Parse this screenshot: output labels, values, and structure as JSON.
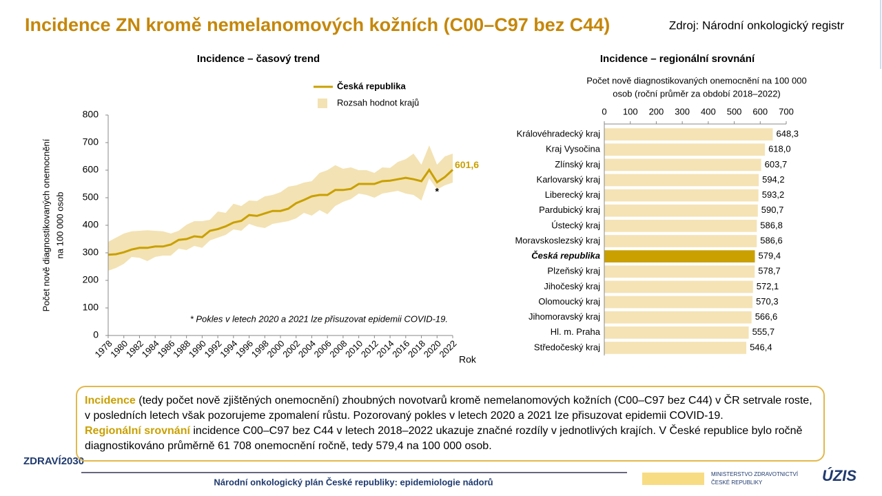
{
  "header": {
    "title": "Incidence ZN kromě nemelanomových kožních (C00–C97 bez C44)",
    "source": "Zdroj: Národní onkologický registr"
  },
  "chart_data": [
    {
      "type": "line",
      "title": "Incidence – časový trend",
      "ylabel": [
        "Počet nově diagnostikovaných onemocnění",
        "na 100 000 osob"
      ],
      "xlabel": "Rok",
      "x": [
        1978,
        1979,
        1980,
        1981,
        1982,
        1983,
        1984,
        1985,
        1986,
        1987,
        1988,
        1989,
        1990,
        1991,
        1992,
        1993,
        1994,
        1995,
        1996,
        1997,
        1998,
        1999,
        2000,
        2001,
        2002,
        2003,
        2004,
        2005,
        2006,
        2007,
        2008,
        2009,
        2010,
        2011,
        2012,
        2013,
        2014,
        2015,
        2016,
        2017,
        2018,
        2019,
        2020,
        2021,
        2022
      ],
      "series": [
        {
          "name": "Česká republika",
          "color": "#c9a000",
          "values": [
            293,
            295,
            302,
            312,
            318,
            318,
            323,
            323,
            330,
            347,
            350,
            360,
            357,
            380,
            386,
            396,
            410,
            416,
            437,
            434,
            443,
            452,
            452,
            460,
            480,
            492,
            505,
            510,
            510,
            528,
            528,
            532,
            550,
            550,
            550,
            560,
            562,
            567,
            572,
            567,
            560,
            601,
            556,
            575,
            601.6
          ],
          "value_labels": [
            null,
            null,
            null,
            null,
            null,
            null,
            null,
            null,
            null,
            null,
            null,
            null,
            null,
            null,
            null,
            null,
            null,
            null,
            null,
            null,
            null,
            null,
            null,
            null,
            null,
            null,
            null,
            null,
            null,
            null,
            null,
            null,
            null,
            null,
            null,
            null,
            null,
            null,
            null,
            null,
            null,
            null,
            null,
            null,
            "601,6"
          ]
        },
        {
          "name": "Rozsah hodnot krajů",
          "color": "#f3e2b3",
          "type": "range",
          "low": [
            235,
            245,
            260,
            285,
            282,
            270,
            285,
            290,
            290,
            315,
            310,
            325,
            318,
            345,
            355,
            365,
            385,
            380,
            405,
            395,
            390,
            405,
            410,
            415,
            425,
            445,
            435,
            455,
            440,
            470,
            485,
            495,
            515,
            510,
            500,
            515,
            520,
            525,
            515,
            510,
            490,
            570,
            530,
            545,
            555
          ],
          "high": [
            340,
            355,
            370,
            378,
            380,
            382,
            380,
            378,
            370,
            380,
            402,
            415,
            415,
            420,
            450,
            445,
            478,
            470,
            490,
            488,
            505,
            510,
            520,
            540,
            545,
            555,
            560,
            590,
            600,
            618,
            605,
            610,
            600,
            600,
            590,
            610,
            608,
            630,
            640,
            660,
            620,
            690,
            620,
            650,
            660
          ]
        }
      ],
      "xlim": [
        1978,
        2022
      ],
      "xticks": [
        1978,
        1980,
        1982,
        1984,
        1986,
        1988,
        1990,
        1992,
        1994,
        1996,
        1998,
        2000,
        2002,
        2004,
        2006,
        2008,
        2010,
        2012,
        2014,
        2016,
        2018,
        2020,
        2022
      ],
      "ylim": [
        0,
        800
      ],
      "yticks": [
        0,
        100,
        200,
        300,
        400,
        500,
        600,
        700,
        800
      ],
      "annotations": [
        {
          "text": "*",
          "x": 2020
        }
      ],
      "note": "* Pokles v letech 2020 a 2021 lze přisuzovat  epidemii COVID-19."
    },
    {
      "type": "hbar",
      "title": "Incidence – regionální srovnání",
      "subtitle": [
        "Počet nově diagnostikovaných onemocnění  na 100 000",
        "osob (roční průměr  za období 2018–2022)"
      ],
      "categories": [
        "Královéhradecký kraj",
        "Kraj Vysočina",
        "Zlínský kraj",
        "Karlovarský kraj",
        "Liberecký kraj",
        "Pardubický kraj",
        "Ústecký kraj",
        "Moravskoslezský kraj",
        "Česká republika",
        "Plzeňský kraj",
        "Jihočeský kraj",
        "Olomoucký kraj",
        "Jihomoravský kraj",
        "Hl. m. Praha",
        "Středočeský kraj"
      ],
      "values": [
        648.3,
        618.0,
        603.7,
        594.2,
        593.2,
        590.7,
        586.8,
        586.6,
        579.4,
        578.7,
        572.1,
        570.3,
        566.6,
        555.7,
        546.4
      ],
      "value_labels": [
        "648,3",
        "618,0",
        "603,7",
        "594,2",
        "593,2",
        "590,7",
        "586,8",
        "586,6",
        "579,4",
        "578,7",
        "572,1",
        "570,3",
        "566,6",
        "555,7",
        "546,4"
      ],
      "colors": [
        "#f5e3b5",
        "#f5e3b5",
        "#f5e3b5",
        "#f5e3b5",
        "#f5e3b5",
        "#f5e3b5",
        "#f5e3b5",
        "#f5e3b5",
        "#c9a000",
        "#f5e3b5",
        "#f5e3b5",
        "#f5e3b5",
        "#f5e3b5",
        "#f5e3b5",
        "#f5e3b5"
      ],
      "xlim": [
        0,
        700
      ],
      "xticks": [
        0,
        100,
        200,
        300,
        400,
        500,
        600,
        700
      ]
    }
  ],
  "summary": [
    {
      "lead": "Incidence",
      "text": " (tedy počet nově zjištěných onemocnění) zhoubných novotvarů kromě nemelanomových kožních (C00–C97 bez C44) v ČR setrvale roste, v posledních letech však pozorujeme zpomalení růstu. Pozorovaný pokles v letech 2020 a 2021 lze přisuzovat epidemii COVID-19."
    },
    {
      "lead": "Regionální srovnání",
      "text": " incidence C00–C97 bez C44 v letech 2018–2022 ukazuje značné rozdíly v jednotlivých krajích. V České republice bylo ročně diagnostikováno průměrně 61 708 onemocnění ročně, tedy 579,4 na 100 000 osob."
    }
  ],
  "footer": {
    "text": "Národní onkologický plán České republiky: epidemiologie nádorů",
    "logo_left": "ZDRAVÍ2030",
    "ministry": [
      "MINISTERSTVO ZDRAVOTNICTVÍ",
      "ČESKÉ REPUBLIKY"
    ],
    "logo_right": "ÚZIS"
  }
}
